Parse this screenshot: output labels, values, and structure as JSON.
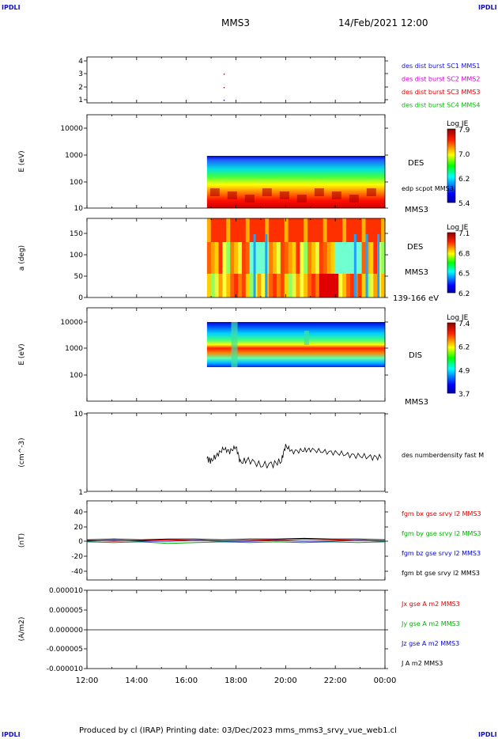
{
  "corners": {
    "tl": "IPDLI",
    "tr": "IPDLI",
    "bl": "IPDLI",
    "br": "IPDLI"
  },
  "header": {
    "title": "MMS3",
    "datetime": "14/Feb/2021 12:00"
  },
  "footer": {
    "text": "Produced by cl (IRAP)   Printing date: 03/Dec/2023   mms_mms3_srvy_vue_web1.cl"
  },
  "colors": {
    "sc1": "#1010e0",
    "sc2": "#d000d0",
    "sc3": "#e00000",
    "sc4": "#00c000",
    "bx": "#e00000",
    "by": "#00b000",
    "bz": "#0000e0",
    "bt": "#000000"
  },
  "chart_data": [
    {
      "type": "scatter",
      "panel": "burst",
      "yticks": [
        "4",
        "3",
        "2",
        "1"
      ],
      "legend": [
        {
          "text": "des dist burst SC1 MMS1",
          "color": "#1010e0"
        },
        {
          "text": "des dist burst SC2 MMS2",
          "color": "#d000d0"
        },
        {
          "text": "des dist burst SC3 MMS3",
          "color": "#e00000"
        },
        {
          "text": "des dist burst SC4 MMS4",
          "color": "#00c000"
        }
      ],
      "points": [
        {
          "x": "17:30",
          "y": 3,
          "color": "#e00000"
        },
        {
          "x": "17:30",
          "y": 2,
          "color": "#e00000"
        },
        {
          "x": "17:30",
          "y": 1,
          "color": "#1010e0"
        }
      ]
    },
    {
      "type": "heatmap",
      "panel": "des-energy",
      "ylabel": "E (eV)",
      "yticks": [
        "10000",
        "1000",
        "100",
        "10"
      ],
      "right_labels": [
        "DES",
        "edp scpot MMS3",
        "MMS3"
      ],
      "colorbar": {
        "title": "Log JE",
        "ticks": [
          "7.9",
          "7.0",
          "6.2",
          "5.4"
        ]
      }
    },
    {
      "type": "heatmap",
      "panel": "des-pitch",
      "ylabel": "a (deg)",
      "yticks": [
        "150",
        "100",
        "50",
        "0"
      ],
      "right_labels": [
        "DES",
        "MMS3",
        "139-166 eV"
      ],
      "colorbar": {
        "title": "Log JE",
        "ticks": [
          "7.1",
          "6.8",
          "6.5",
          "6.2"
        ]
      }
    },
    {
      "type": "heatmap",
      "panel": "dis-energy",
      "ylabel": "E (eV)",
      "yticks": [
        "10000",
        "1000",
        "100"
      ],
      "right_labels": [
        "DIS",
        "MMS3"
      ],
      "colorbar": {
        "title": "Log JE",
        "ticks": [
          "7.4",
          "6.2",
          "4.9",
          "3.7"
        ]
      }
    },
    {
      "type": "line",
      "panel": "density",
      "ylabel": "(cm^-3)",
      "yticks": [
        "10",
        "1"
      ],
      "scale": "log",
      "ylim": [
        1,
        10
      ],
      "legend": [
        {
          "text": "des numberdensity fast M",
          "color": "#000000"
        }
      ],
      "series": [
        {
          "x": [
            "16:50",
            "17:00",
            "17:15",
            "17:30",
            "17:45",
            "18:00",
            "18:10",
            "18:30",
            "19:00",
            "19:30",
            "19:50",
            "20:00",
            "20:15",
            "20:40",
            "21:00",
            "21:30",
            "22:00",
            "22:30",
            "23:00",
            "23:30",
            "23:55"
          ],
          "y": [
            2.7,
            2.5,
            3.0,
            3.6,
            3.3,
            3.8,
            2.4,
            2.6,
            2.2,
            2.3,
            2.5,
            3.9,
            3.3,
            3.4,
            3.5,
            3.3,
            3.2,
            3.0,
            2.9,
            2.8,
            2.8
          ]
        }
      ]
    },
    {
      "type": "line",
      "panel": "fgm",
      "ylabel": "(nT)",
      "yticks": [
        "40",
        "20",
        "0",
        "-20",
        "-40"
      ],
      "ylim": [
        -50,
        50
      ],
      "legend": [
        {
          "text": "fgm bx gse srvy l2 MMS3",
          "color": "#e00000"
        },
        {
          "text": "fgm by gse srvy l2 MMS3",
          "color": "#00b000"
        },
        {
          "text": "fgm bz gse srvy l2 MMS3",
          "color": "#0000e0"
        },
        {
          "text": "fgm bt gse srvy l2 MMS3",
          "color": "#000000"
        }
      ],
      "series": [
        {
          "name": "bx",
          "values": [
            1,
            0,
            1,
            2,
            1,
            0,
            1,
            2,
            3,
            2,
            1,
            0
          ]
        },
        {
          "name": "by",
          "values": [
            -1,
            -2,
            -1,
            -3,
            -2,
            -1,
            -2,
            -1,
            -2,
            -1,
            -2,
            -1
          ]
        },
        {
          "name": "bz",
          "values": [
            0,
            1,
            0,
            0,
            1,
            0,
            0,
            1,
            0,
            0,
            1,
            0
          ]
        },
        {
          "name": "bt",
          "values": [
            2,
            3,
            2,
            3,
            3,
            2,
            3,
            3,
            4,
            3,
            3,
            2
          ]
        }
      ]
    },
    {
      "type": "line",
      "panel": "current",
      "ylabel": "(A/m2)",
      "yticks": [
        "0.000010",
        "0.000005",
        "0.000000",
        "-0.000005",
        "-0.000010"
      ],
      "ylim": [
        -1e-05,
        1e-05
      ],
      "legend": [
        {
          "text": "Jx gse A m2 MMS3",
          "color": "#e00000"
        },
        {
          "text": "Jy gse A m2 MMS3",
          "color": "#00b000"
        },
        {
          "text": "Jz gse A m2 MMS3",
          "color": "#0000e0"
        },
        {
          "text": "J A m2 MMS3",
          "color": "#000000"
        }
      ]
    }
  ],
  "xaxis": {
    "ticks": [
      "12:00",
      "14:00",
      "16:00",
      "18:00",
      "20:00",
      "22:00",
      "00:00"
    ]
  }
}
